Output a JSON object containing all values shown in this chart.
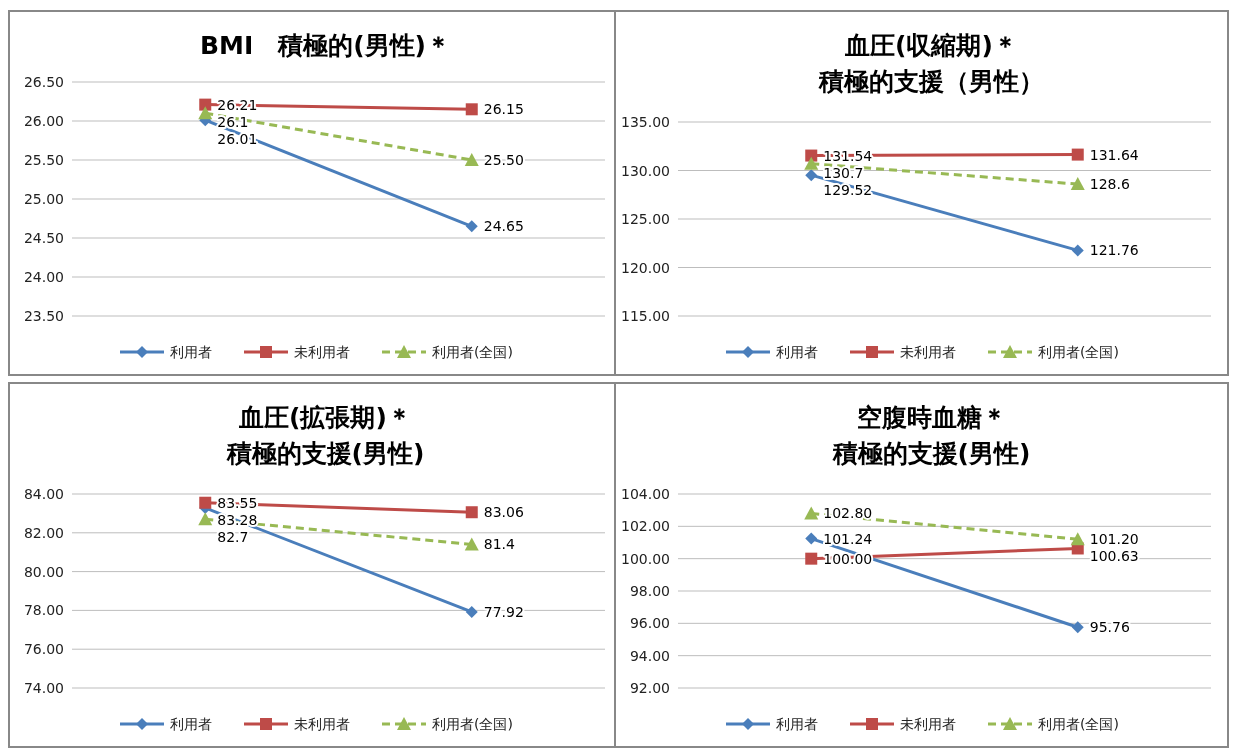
{
  "chart_data": [
    {
      "type": "line",
      "title": "BMI　積極的(男性)＊",
      "categories": [
        null,
        null
      ],
      "ylim": [
        23.5,
        26.5
      ],
      "yticks": [
        {
          "value": 23.5,
          "label": "23.50"
        },
        {
          "value": 24,
          "label": "24.00"
        },
        {
          "value": 24.5,
          "label": "24.50"
        },
        {
          "value": 25,
          "label": "25.00"
        },
        {
          "value": 25.5,
          "label": "25.50"
        },
        {
          "value": 26,
          "label": "26.00"
        },
        {
          "value": 26.5,
          "label": "26.50"
        }
      ],
      "grid": "y",
      "legend": "bottom",
      "series": [
        {
          "name": "利用者",
          "color": "#4a7ebb",
          "marker": "diamond",
          "line_style": "solid",
          "values": [
            26.01,
            24.65
          ],
          "value_labels": [
            "26.01",
            "24.65"
          ]
        },
        {
          "name": "未利用者",
          "color": "#be4b48",
          "marker": "square",
          "line_style": "solid",
          "values": [
            26.21,
            26.15
          ],
          "value_labels": [
            "26.21",
            "26.15"
          ]
        },
        {
          "name": "利用者(全国)",
          "color": "#98b954",
          "marker": "triangle",
          "line_style": "dashed",
          "values": [
            26.1,
            25.5
          ],
          "value_labels": [
            "26.1",
            "25.50"
          ]
        }
      ]
    },
    {
      "type": "line",
      "title": "血圧(収縮期)＊",
      "subtitle": "積極的支援（男性）",
      "categories": [
        null,
        null
      ],
      "ylim": [
        115,
        135
      ],
      "yticks": [
        {
          "value": 115,
          "label": "115.00"
        },
        {
          "value": 120,
          "label": "120.00"
        },
        {
          "value": 125,
          "label": "125.00"
        },
        {
          "value": 130,
          "label": "130.00"
        },
        {
          "value": 135,
          "label": "135.00"
        }
      ],
      "grid": "y",
      "legend": "bottom",
      "series": [
        {
          "name": "利用者",
          "color": "#4a7ebb",
          "marker": "diamond",
          "line_style": "solid",
          "values": [
            129.52,
            121.76
          ],
          "value_labels": [
            "129.52",
            "121.76"
          ]
        },
        {
          "name": "未利用者",
          "color": "#be4b48",
          "marker": "square",
          "line_style": "solid",
          "values": [
            131.54,
            131.64
          ],
          "value_labels": [
            "131.54",
            "131.64"
          ]
        },
        {
          "name": "利用者(全国)",
          "color": "#98b954",
          "marker": "triangle",
          "line_style": "dashed",
          "values": [
            130.7,
            128.6
          ],
          "value_labels": [
            "130.7",
            "128.6"
          ]
        }
      ]
    },
    {
      "type": "line",
      "title": "血圧(拡張期)＊",
      "subtitle": "積極的支援(男性)",
      "categories": [
        null,
        null
      ],
      "ylim": [
        74,
        84
      ],
      "yticks": [
        {
          "value": 74,
          "label": "74.00"
        },
        {
          "value": 76,
          "label": "76.00"
        },
        {
          "value": 78,
          "label": "78.00"
        },
        {
          "value": 80,
          "label": "80.00"
        },
        {
          "value": 82,
          "label": "82.00"
        },
        {
          "value": 84,
          "label": "84.00"
        }
      ],
      "grid": "y",
      "legend": "bottom",
      "series": [
        {
          "name": "利用者",
          "color": "#4a7ebb",
          "marker": "diamond",
          "line_style": "solid",
          "values": [
            83.28,
            77.92
          ],
          "value_labels": [
            "83.28",
            "77.92"
          ]
        },
        {
          "name": "未利用者",
          "color": "#be4b48",
          "marker": "square",
          "line_style": "solid",
          "values": [
            83.55,
            83.06
          ],
          "value_labels": [
            "83.55",
            "83.06"
          ]
        },
        {
          "name": "利用者(全国)",
          "color": "#98b954",
          "marker": "triangle",
          "line_style": "dashed",
          "values": [
            82.7,
            81.4
          ],
          "value_labels": [
            "82.7",
            "81.4"
          ]
        }
      ]
    },
    {
      "type": "line",
      "title": "空腹時血糖＊",
      "subtitle": "積極的支援(男性)",
      "categories": [
        null,
        null
      ],
      "ylim": [
        92,
        104
      ],
      "yticks": [
        {
          "value": 92,
          "label": "92.00"
        },
        {
          "value": 94,
          "label": "94.00"
        },
        {
          "value": 96,
          "label": "96.00"
        },
        {
          "value": 98,
          "label": "98.00"
        },
        {
          "value": 100,
          "label": "100.00"
        },
        {
          "value": 102,
          "label": "102.00"
        },
        {
          "value": 104,
          "label": "104.00"
        }
      ],
      "grid": "y",
      "legend": "bottom",
      "series": [
        {
          "name": "利用者",
          "color": "#4a7ebb",
          "marker": "diamond",
          "line_style": "solid",
          "values": [
            101.24,
            95.76
          ],
          "value_labels": [
            "101.24",
            "95.76"
          ]
        },
        {
          "name": "未利用者",
          "color": "#be4b48",
          "marker": "square",
          "line_style": "solid",
          "values": [
            100.0,
            100.63
          ],
          "value_labels": [
            "100.00",
            "100.63"
          ]
        },
        {
          "name": "利用者(全国)",
          "color": "#98b954",
          "marker": "triangle",
          "line_style": "dashed",
          "values": [
            102.8,
            101.2
          ],
          "value_labels": [
            "102.80",
            "101.20"
          ]
        }
      ]
    }
  ]
}
